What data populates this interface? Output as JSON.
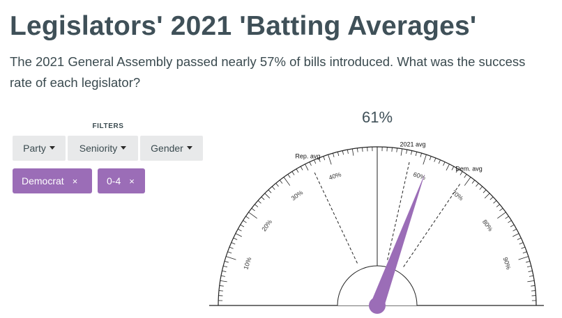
{
  "page": {
    "title": "Legislators' 2021 'Batting Averages'",
    "subtitle": "The 2021 General Assembly passed nearly 57% of bills introduced. What was the success rate of each legislator?"
  },
  "filters": {
    "label": "FILTERS",
    "dropdowns": [
      {
        "label": "Party"
      },
      {
        "label": "Seniority"
      },
      {
        "label": "Gender"
      }
    ],
    "active_chips": [
      {
        "label": "Democrat",
        "remove": "×"
      },
      {
        "label": "0-4",
        "remove": "×"
      }
    ]
  },
  "colors": {
    "accent": "#9b6db7",
    "text": "#3a4a4f",
    "button_bg": "#e8e9ea"
  },
  "chart_data": {
    "type": "gauge",
    "value": 61,
    "value_label": "61%",
    "range": [
      0,
      100
    ],
    "major_ticks": [
      10,
      20,
      30,
      40,
      60,
      70,
      80,
      90
    ],
    "tick_labels": [
      "10%",
      "20%",
      "30%",
      "40%",
      "60%",
      "70%",
      "80%",
      "90%"
    ],
    "reference_lines": [
      {
        "label": "Rep. avg",
        "value": 36
      },
      {
        "label": "2021 avg",
        "value": 57
      },
      {
        "label": "Dem. avg",
        "value": 69
      }
    ],
    "midpoint_line": 50
  }
}
